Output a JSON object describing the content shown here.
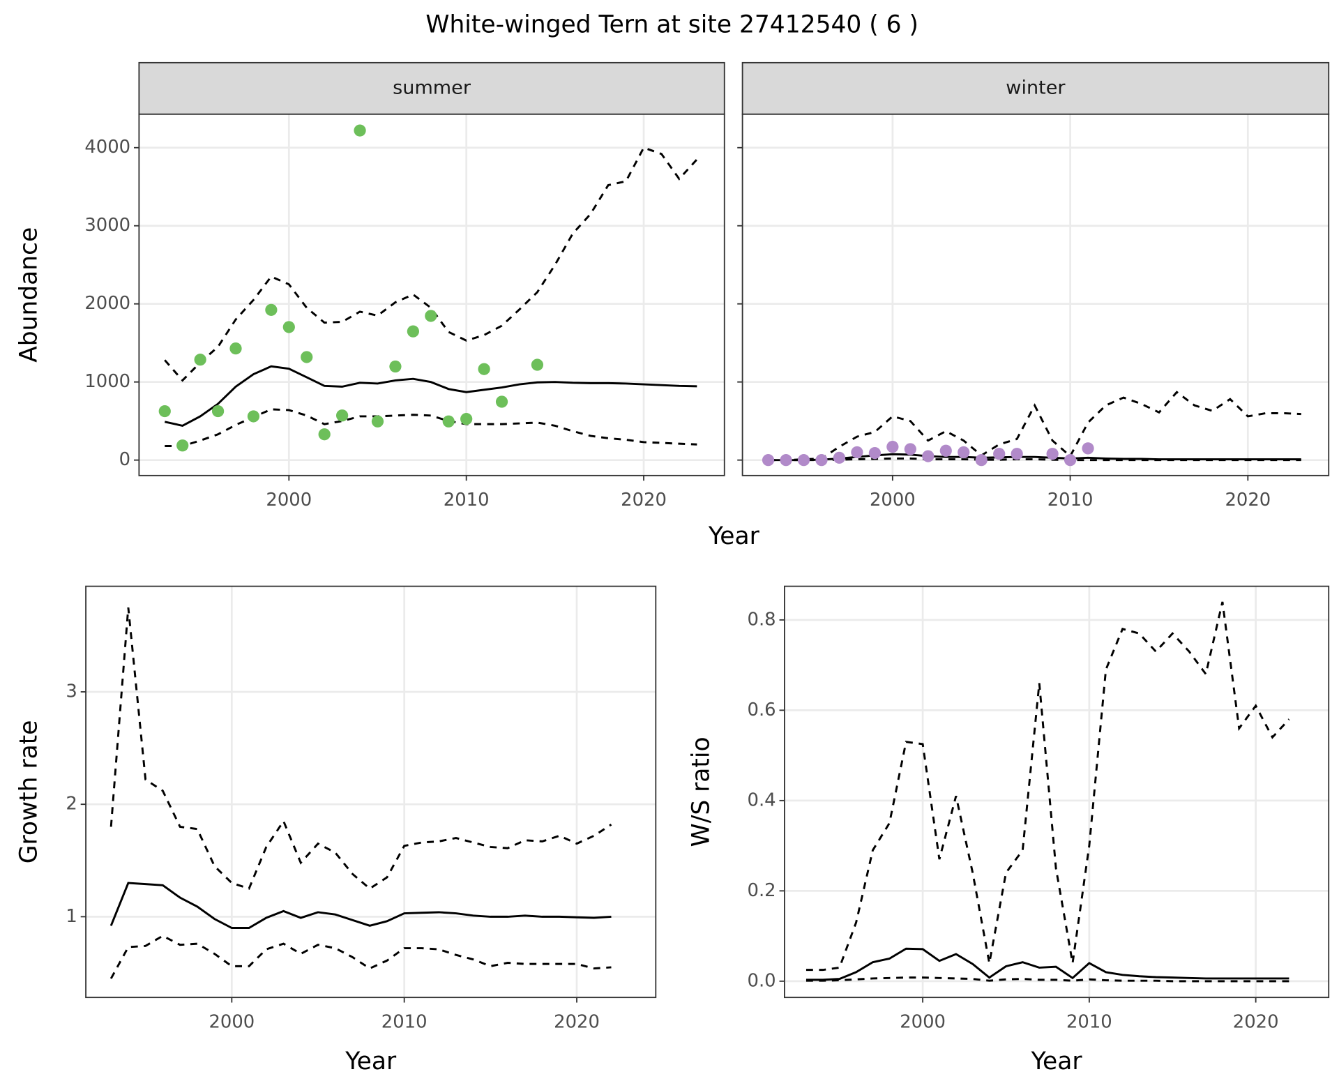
{
  "title": "White-winged Tern at site 27412540 ( 6 )",
  "chart_data": [
    {
      "type": "line",
      "facet": "summer",
      "ylabel": "Abundance",
      "xlabel": "Year",
      "grid": true,
      "xlim": [
        1991.55,
        2024.55
      ],
      "ylim": [
        -198,
        4429
      ],
      "xticks": [
        2000,
        2010,
        2020
      ],
      "yticks": [
        0,
        1000,
        2000,
        3000,
        4000
      ],
      "x": [
        1993,
        1994,
        1995,
        1996,
        1997,
        1998,
        1999,
        2000,
        2001,
        2002,
        2003,
        2004,
        2005,
        2006,
        2007,
        2008,
        2009,
        2010,
        2011,
        2012,
        2013,
        2014,
        2015,
        2016,
        2017,
        2018,
        2019,
        2020,
        2021,
        2022,
        2023
      ],
      "series": [
        {
          "style": "dashed",
          "color": "#000000",
          "values": [
            1280,
            1020,
            1250,
            1450,
            1800,
            2050,
            2350,
            2250,
            1950,
            1760,
            1770,
            1900,
            1850,
            2020,
            2120,
            1950,
            1640,
            1530,
            1600,
            1720,
            1930,
            2150,
            2500,
            2900,
            3150,
            3520,
            3570,
            4000,
            3920,
            3600,
            3850
          ]
        },
        {
          "style": "solid",
          "color": "#000000",
          "values": [
            490,
            440,
            560,
            720,
            940,
            1100,
            1200,
            1170,
            1060,
            950,
            940,
            990,
            980,
            1020,
            1040,
            1000,
            910,
            870,
            900,
            930,
            970,
            995,
            1000,
            990,
            985,
            985,
            980,
            970,
            960,
            950,
            945
          ]
        },
        {
          "style": "dashed",
          "color": "#000000",
          "values": [
            180,
            180,
            250,
            330,
            450,
            550,
            650,
            640,
            570,
            460,
            500,
            560,
            560,
            570,
            580,
            570,
            500,
            460,
            460,
            460,
            470,
            480,
            440,
            370,
            310,
            280,
            260,
            230,
            220,
            210,
            200
          ]
        },
        {
          "style": "points",
          "color": "#6dbf5a",
          "values": [
            626,
            187,
            1286,
            626,
            1429,
            560,
            1923,
            1703,
            1319,
            330,
            571,
            4220,
            495,
            1198,
            1648,
            1846,
            495,
            527,
            1165,
            747,
            null,
            1220,
            null,
            null,
            null,
            null,
            null,
            null,
            null,
            null,
            null
          ]
        }
      ]
    },
    {
      "type": "line",
      "facet": "winter",
      "grid": true,
      "show_ytick_labels": false,
      "xlim": [
        1991.55,
        2024.55
      ],
      "ylim": [
        -198,
        4429
      ],
      "xticks": [
        2000,
        2010,
        2020
      ],
      "yticks": [
        0,
        1000,
        2000,
        3000,
        4000
      ],
      "x": [
        1993,
        1994,
        1995,
        1996,
        1997,
        1998,
        1999,
        2000,
        2001,
        2002,
        2003,
        2004,
        2005,
        2006,
        2007,
        2008,
        2009,
        2010,
        2011,
        2012,
        2013,
        2014,
        2015,
        2016,
        2017,
        2018,
        2019,
        2020,
        2021,
        2022,
        2023
      ],
      "series": [
        {
          "style": "dashed",
          "color": "#000000",
          "values": [
            0,
            0,
            10,
            20,
            170,
            300,
            360,
            560,
            500,
            250,
            370,
            250,
            60,
            200,
            270,
            700,
            250,
            50,
            480,
            700,
            800,
            720,
            610,
            870,
            700,
            630,
            780,
            560,
            600,
            600,
            590
          ]
        },
        {
          "style": "solid",
          "color": "#000000",
          "values": [
            0,
            0,
            0,
            5,
            20,
            40,
            60,
            75,
            70,
            50,
            40,
            40,
            30,
            35,
            40,
            40,
            30,
            20,
            30,
            20,
            15,
            15,
            10,
            10,
            10,
            10,
            10,
            10,
            10,
            10,
            10
          ]
        },
        {
          "style": "dashed",
          "color": "#000000",
          "values": [
            0,
            0,
            0,
            0,
            5,
            10,
            15,
            20,
            20,
            10,
            10,
            10,
            5,
            5,
            10,
            10,
            5,
            0,
            0,
            0,
            0,
            0,
            0,
            0,
            0,
            0,
            0,
            0,
            0,
            0,
            0
          ]
        },
        {
          "style": "points",
          "color": "#b18ac9",
          "values": [
            0,
            0,
            0,
            0,
            30,
            100,
            90,
            170,
            140,
            50,
            120,
            100,
            0,
            80,
            80,
            null,
            80,
            0,
            150,
            null,
            null,
            null,
            null,
            null,
            null,
            null,
            null,
            null,
            null,
            null,
            null
          ]
        }
      ]
    },
    {
      "type": "line",
      "ylabel": "Growth rate",
      "xlabel": "Year",
      "grid": true,
      "xlim": [
        1991.54,
        2024.58
      ],
      "ylim": [
        0.282,
        3.939
      ],
      "xticks": [
        2000,
        2010,
        2020
      ],
      "yticks": [
        1,
        2,
        3
      ],
      "x": [
        1993,
        1994,
        1995,
        1996,
        1997,
        1998,
        1999,
        2000,
        2001,
        2002,
        2003,
        2004,
        2005,
        2006,
        2007,
        2008,
        2009,
        2010,
        2011,
        2012,
        2013,
        2014,
        2015,
        2016,
        2017,
        2018,
        2019,
        2020,
        2021,
        2022
      ],
      "series": [
        {
          "style": "dashed",
          "color": "#000000",
          "values": [
            1.8,
            3.75,
            2.22,
            2.12,
            1.8,
            1.78,
            1.45,
            1.3,
            1.25,
            1.62,
            1.85,
            1.48,
            1.65,
            1.57,
            1.38,
            1.25,
            1.35,
            1.63,
            1.66,
            1.67,
            1.7,
            1.66,
            1.62,
            1.61,
            1.68,
            1.67,
            1.72,
            1.65,
            1.72,
            1.82
          ]
        },
        {
          "style": "solid",
          "color": "#000000",
          "values": [
            0.92,
            1.3,
            1.29,
            1.28,
            1.17,
            1.09,
            0.98,
            0.9,
            0.9,
            0.99,
            1.05,
            0.99,
            1.04,
            1.02,
            0.97,
            0.92,
            0.96,
            1.03,
            1.035,
            1.04,
            1.03,
            1.01,
            1.0,
            1.0,
            1.01,
            1.0,
            1.0,
            0.995,
            0.99,
            1.0
          ]
        },
        {
          "style": "dashed",
          "color": "#000000",
          "values": [
            0.45,
            0.73,
            0.74,
            0.83,
            0.75,
            0.76,
            0.67,
            0.56,
            0.56,
            0.71,
            0.76,
            0.67,
            0.75,
            0.72,
            0.64,
            0.54,
            0.61,
            0.72,
            0.72,
            0.71,
            0.66,
            0.62,
            0.56,
            0.59,
            0.58,
            0.58,
            0.58,
            0.58,
            0.54,
            0.55
          ]
        }
      ]
    },
    {
      "type": "line",
      "ylabel": "W/S ratio",
      "xlabel": "Year",
      "grid": true,
      "xlim": [
        1991.7,
        2024.38
      ],
      "ylim": [
        -0.036,
        0.8745
      ],
      "xticks": [
        2000,
        2010,
        2020
      ],
      "yticks": [
        {
          "value": 0,
          "label": "0.0"
        },
        0.2,
        0.4,
        0.6,
        0.8
      ],
      "x": [
        1993,
        1994,
        1995,
        1996,
        1997,
        1998,
        1999,
        2000,
        2001,
        2002,
        2003,
        2004,
        2005,
        2006,
        2007,
        2008,
        2009,
        2010,
        2011,
        2012,
        2013,
        2014,
        2015,
        2016,
        2017,
        2018,
        2019,
        2020,
        2021,
        2022
      ],
      "series": [
        {
          "style": "dashed",
          "color": "#000000",
          "values": [
            0.025,
            0.025,
            0.03,
            0.13,
            0.29,
            0.35,
            0.53,
            0.525,
            0.27,
            0.41,
            0.24,
            0.04,
            0.24,
            0.29,
            0.66,
            0.25,
            0.04,
            0.3,
            0.69,
            0.78,
            0.77,
            0.73,
            0.77,
            0.73,
            0.68,
            0.84,
            0.56,
            0.61,
            0.54,
            0.58
          ]
        },
        {
          "style": "solid",
          "color": "#000000",
          "values": [
            0.003,
            0.003,
            0.005,
            0.02,
            0.042,
            0.05,
            0.072,
            0.071,
            0.045,
            0.06,
            0.038,
            0.008,
            0.033,
            0.042,
            0.03,
            0.032,
            0.007,
            0.04,
            0.02,
            0.014,
            0.011,
            0.009,
            0.008,
            0.007,
            0.006,
            0.006,
            0.006,
            0.006,
            0.006,
            0.006
          ]
        },
        {
          "style": "dashed",
          "color": "#000000",
          "values": [
            0.001,
            0.001,
            0.002,
            0.004,
            0.006,
            0.007,
            0.008,
            0.008,
            0.007,
            0.006,
            0.005,
            0.001,
            0.004,
            0.005,
            0.003,
            0.003,
            0.001,
            0.004,
            0.002,
            0.001,
            0.001,
            0.001,
            0,
            0,
            0,
            0,
            0,
            0,
            0,
            0
          ]
        }
      ]
    }
  ]
}
